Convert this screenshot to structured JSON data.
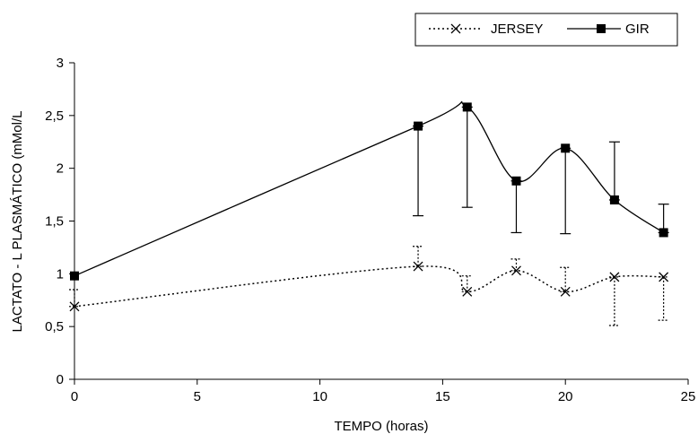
{
  "chart_data": {
    "type": "line",
    "xlabel": "TEMPO (horas)",
    "ylabel": "LACTATO - L PLASMÁTICO (mMol/L",
    "xlim": [
      0,
      25
    ],
    "ylim": [
      0,
      3
    ],
    "x_ticks": [
      "0",
      "5",
      "10",
      "15",
      "20",
      "25"
    ],
    "y_ticks": [
      "0",
      "0,5",
      "1",
      "1,5",
      "2",
      "2,5",
      "3"
    ],
    "grid": false,
    "legend_position": "top-right",
    "series": [
      {
        "name": "JERSEY",
        "marker": "x",
        "line_style": "dotted",
        "x": [
          0,
          14,
          16,
          18,
          20,
          22,
          24
        ],
        "values": [
          0.69,
          1.07,
          0.83,
          1.03,
          0.83,
          0.97,
          0.97
        ],
        "error_upper": [
          0.85,
          1.26,
          0.98,
          1.14,
          1.06,
          0.97,
          0.97
        ],
        "error_lower": [
          0.69,
          1.07,
          0.83,
          1.03,
          0.83,
          0.51,
          0.56
        ]
      },
      {
        "name": "GIR",
        "marker": "square",
        "line_style": "solid",
        "x": [
          0,
          14,
          16,
          18,
          20,
          22,
          24
        ],
        "values": [
          0.98,
          2.4,
          2.58,
          1.88,
          2.19,
          1.7,
          1.39
        ],
        "error_upper": [
          0.98,
          2.4,
          2.58,
          1.88,
          2.19,
          2.25,
          1.66
        ],
        "error_lower": [
          0.98,
          1.55,
          1.63,
          1.39,
          1.38,
          1.7,
          1.39
        ]
      }
    ]
  }
}
